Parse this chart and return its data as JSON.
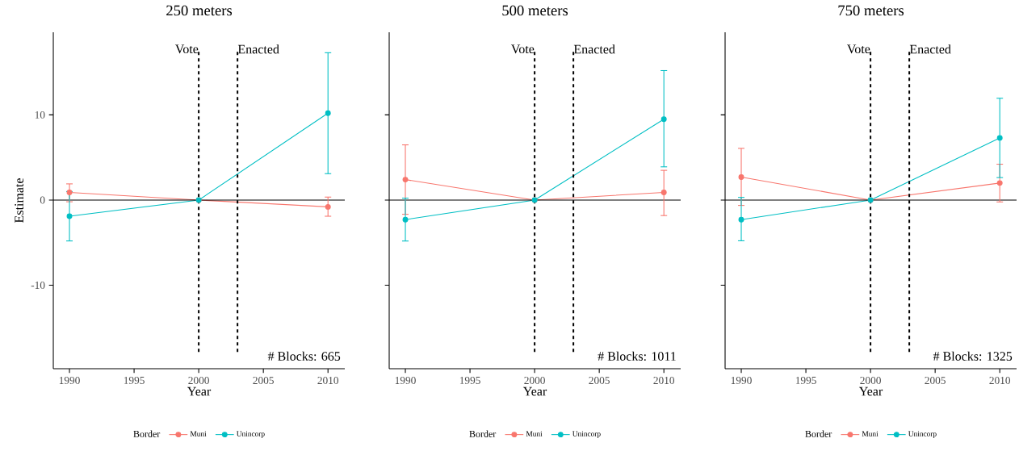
{
  "chart_data": [
    {
      "type": "line",
      "title": "250 meters",
      "xlabel": "Year",
      "ylabel": "Estimate",
      "legend_title": "Border",
      "legend": "bottom",
      "marker": "circle",
      "line_style": "solid",
      "x": [
        1990,
        2000,
        2010
      ],
      "xlim": [
        1988.75,
        2011.3
      ],
      "ylim": [
        -19.8,
        19.7
      ],
      "xticks": [
        1990,
        1995,
        2000,
        2005,
        2010
      ],
      "yticks": [
        -10,
        0,
        10
      ],
      "series": [
        {
          "name": "Muni",
          "color": "#f8766d",
          "values": [
            0.9,
            0,
            -0.8
          ],
          "errors": [
            [
              -0.2,
              1.9
            ],
            null,
            [
              -1.9,
              0.35
            ]
          ]
        },
        {
          "name": "Unincorp",
          "color": "#00bfc4",
          "values": [
            -1.9,
            0,
            10.2
          ],
          "errors": [
            [
              -4.8,
              1.0
            ],
            null,
            [
              3.1,
              17.3
            ]
          ]
        }
      ],
      "ref_lines": [
        {
          "axis": "y",
          "value": 0,
          "color": "#000000",
          "line_style": "solid"
        },
        {
          "axis": "x",
          "value": 2000,
          "label": "Vote",
          "color": "#000000",
          "line_style": "dashed"
        },
        {
          "axis": "x",
          "value": 2003,
          "label": "Enacted",
          "color": "#000000",
          "line_style": "dashed"
        }
      ],
      "annotations": [
        "# Blocks: 665"
      ]
    },
    {
      "type": "line",
      "title": "500 meters",
      "xlabel": "Year",
      "legend_title": "Border",
      "legend": "bottom",
      "marker": "circle",
      "line_style": "solid",
      "tick_labels": "x",
      "x": [
        1990,
        2000,
        2010
      ],
      "xlim": [
        1988.75,
        2011.3
      ],
      "ylim": [
        -19.8,
        19.7
      ],
      "xticks": [
        1990,
        1995,
        2000,
        2005,
        2010
      ],
      "yticks": [
        -10,
        0,
        10
      ],
      "series": [
        {
          "name": "Muni",
          "color": "#f8766d",
          "values": [
            2.4,
            0,
            0.9
          ],
          "errors": [
            [
              -1.67,
              6.48
            ],
            null,
            [
              -1.82,
              3.49
            ]
          ]
        },
        {
          "name": "Unincorp",
          "color": "#00bfc4",
          "values": [
            -2.3,
            0,
            9.5
          ],
          "errors": [
            [
              -4.81,
              0.22
            ],
            null,
            [
              3.9,
              15.2
            ]
          ]
        }
      ],
      "ref_lines": [
        {
          "axis": "y",
          "value": 0,
          "color": "#000000",
          "line_style": "solid"
        },
        {
          "axis": "x",
          "value": 2000,
          "label": "Vote",
          "color": "#000000",
          "line_style": "dashed"
        },
        {
          "axis": "x",
          "value": 2003,
          "label": "Enacted",
          "color": "#000000",
          "line_style": "dashed"
        }
      ],
      "annotations": [
        "# Blocks: 1011"
      ]
    },
    {
      "type": "line",
      "title": "750 meters",
      "xlabel": "Year",
      "legend_title": "Border",
      "legend": "bottom",
      "marker": "circle",
      "line_style": "solid",
      "tick_labels": "x",
      "x": [
        1990,
        2000,
        2010
      ],
      "xlim": [
        1988.75,
        2011.3
      ],
      "ylim": [
        -19.8,
        19.7
      ],
      "xticks": [
        1990,
        1995,
        2000,
        2005,
        2010
      ],
      "yticks": [
        -10,
        0,
        10
      ],
      "series": [
        {
          "name": "Muni",
          "color": "#f8766d",
          "values": [
            2.7,
            0,
            2.0
          ],
          "errors": [
            [
              -0.63,
              6.07
            ],
            null,
            [
              -0.22,
              4.21
            ]
          ]
        },
        {
          "name": "Unincorp",
          "color": "#00bfc4",
          "values": [
            -2.3,
            0,
            7.3
          ],
          "errors": [
            [
              -4.78,
              0.31
            ],
            null,
            [
              2.64,
              11.95
            ]
          ]
        }
      ],
      "ref_lines": [
        {
          "axis": "y",
          "value": 0,
          "color": "#000000",
          "line_style": "solid"
        },
        {
          "axis": "x",
          "value": 2000,
          "label": "Vote",
          "color": "#000000",
          "line_style": "dashed"
        },
        {
          "axis": "x",
          "value": 2003,
          "label": "Enacted",
          "color": "#000000",
          "line_style": "dashed"
        }
      ],
      "annotations": [
        "# Blocks: 1325"
      ]
    }
  ]
}
